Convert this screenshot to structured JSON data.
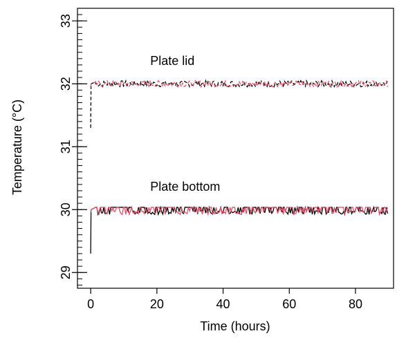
{
  "chart_data": {
    "type": "line",
    "xlabel": "Time (hours)",
    "ylabel": "Temperature (°C)",
    "xlim": [
      -4,
      91.5
    ],
    "ylim": [
      28.75,
      33.2
    ],
    "x_ticks": [
      0,
      20,
      40,
      60,
      80
    ],
    "x_tick_labels": [
      "0",
      "20",
      "40",
      "60",
      "80"
    ],
    "y_ticks": [
      29,
      30,
      31,
      32,
      33
    ],
    "y_tick_labels": [
      "29",
      "30",
      "31",
      "32",
      "33"
    ],
    "y_minor_tick_step": 0.1,
    "grid": false,
    "legend": "none",
    "annotations": [
      {
        "text": "Plate lid",
        "x": 18,
        "y": 32.3
      },
      {
        "text": "Plate bottom",
        "x": 18,
        "y": 30.3
      }
    ],
    "series": [
      {
        "group": "lid",
        "color": "#000000",
        "dash": "dashed",
        "start": [
          0,
          31.3
        ],
        "x_end": 90,
        "setpoint": 32.0,
        "amplitude": 0.05
      },
      {
        "group": "lid",
        "color": "#DF536B",
        "dash": "dashed",
        "start": [
          0,
          31.95
        ],
        "x_end": 90,
        "setpoint": 32.0,
        "amplitude": 0.05
      },
      {
        "group": "bottom",
        "color": "#000000",
        "dash": "solid",
        "start": [
          0,
          29.3
        ],
        "x_end": 90,
        "setpoint": 30.0,
        "amplitude": 0.06
      },
      {
        "group": "bottom",
        "color": "#DF536B",
        "dash": "solid",
        "start": [
          0,
          29.95
        ],
        "x_end": 90,
        "setpoint": 30.0,
        "amplitude": 0.06
      }
    ]
  }
}
